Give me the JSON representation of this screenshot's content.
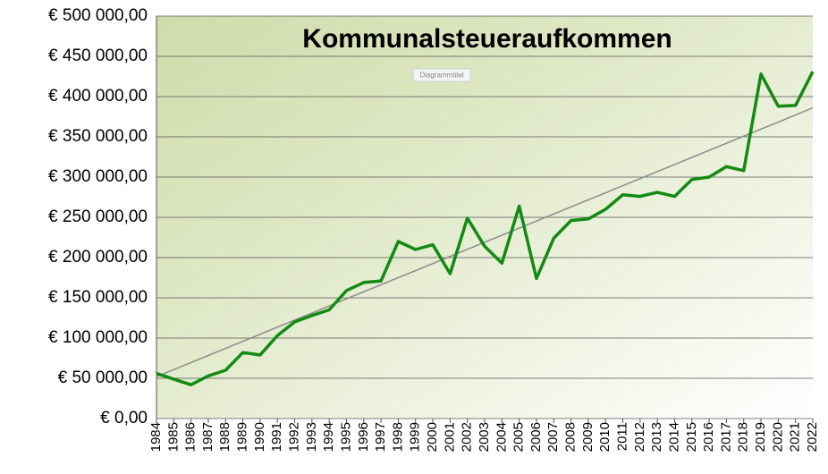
{
  "chart_data": {
    "type": "line",
    "title": "Kommunalsteueraufkommen",
    "annotation": "Diagrammtitel",
    "categories": [
      "1984",
      "1985",
      "1986",
      "1987",
      "1988",
      "1989",
      "1990",
      "1991",
      "1992",
      "1993",
      "1994",
      "1995",
      "1996",
      "1997",
      "1998",
      "1999",
      "2000",
      "2001",
      "2002",
      "2003",
      "2004",
      "2005",
      "2006",
      "2007",
      "2008",
      "2009",
      "2010",
      "2011",
      "2012",
      "2013",
      "2014",
      "2015",
      "2016",
      "2017",
      "2018",
      "2019",
      "2020",
      "2021",
      "2022"
    ],
    "series": [
      {
        "color": "#138a13",
        "values": [
          56000,
          49000,
          42000,
          53000,
          60000,
          82000,
          79000,
          103000,
          120000,
          128000,
          135000,
          159000,
          169000,
          171000,
          220000,
          210000,
          216000,
          180000,
          249000,
          214000,
          193000,
          264000,
          174000,
          224000,
          246000,
          248000,
          260000,
          278000,
          276000,
          281000,
          276000,
          297000,
          300000,
          313000,
          308000,
          428000,
          388000,
          389000,
          431000
        ]
      }
    ],
    "trendline": {
      "color": "#8c8c8c",
      "values": [
        52000,
        386000
      ]
    },
    "ylim": [
      0,
      500000
    ],
    "yticks": [
      {
        "value": 0,
        "label": "€ 0,00"
      },
      {
        "value": 50000,
        "label": "€ 50 000,00"
      },
      {
        "value": 100000,
        "label": "€ 100 000,00"
      },
      {
        "value": 150000,
        "label": "€ 150 000,00"
      },
      {
        "value": 200000,
        "label": "€ 200 000,00"
      },
      {
        "value": 250000,
        "label": "€ 250 000,00"
      },
      {
        "value": 300000,
        "label": "€ 300 000,00"
      },
      {
        "value": 350000,
        "label": "€ 350 000,00"
      },
      {
        "value": 400000,
        "label": "€ 400 000,00"
      },
      {
        "value": 450000,
        "label": "€ 450 000,00"
      },
      {
        "value": 500000,
        "label": "€ 500 000,00"
      }
    ],
    "grid": true
  }
}
